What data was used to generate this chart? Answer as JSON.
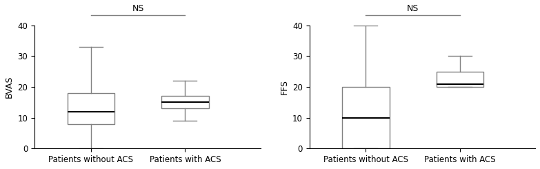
{
  "left_ylabel": "BVAS",
  "right_ylabel": "FFS",
  "xlabel_1": "Patients without ACS",
  "xlabel_2": "Patients with ACS",
  "ns_label": "NS",
  "ylim": [
    0,
    40
  ],
  "yticks": [
    0,
    10,
    20,
    30,
    40
  ],
  "bvas": {
    "no_acs": {
      "whislo": 0,
      "q1": 8,
      "med": 12,
      "q3": 18,
      "whishi": 33
    },
    "acs": {
      "whislo": 9,
      "q1": 13,
      "med": 15,
      "q3": 17,
      "whishi": 22
    }
  },
  "ffs": {
    "no_acs": {
      "whislo": 0,
      "q1": 0,
      "med": 10,
      "q3": 20,
      "whishi": 40
    },
    "acs": {
      "whislo": 20,
      "q1": 20,
      "med": 21,
      "q3": 25,
      "whishi": 30
    }
  },
  "box_color": "#ffffff",
  "line_color": "#000000",
  "whisker_color": "#808080",
  "median_color": "#000000",
  "ns_line_color": "#808080",
  "background_color": "#ffffff",
  "fontsize_tick": 8.5,
  "fontsize_label": 9,
  "fontsize_ns": 9
}
